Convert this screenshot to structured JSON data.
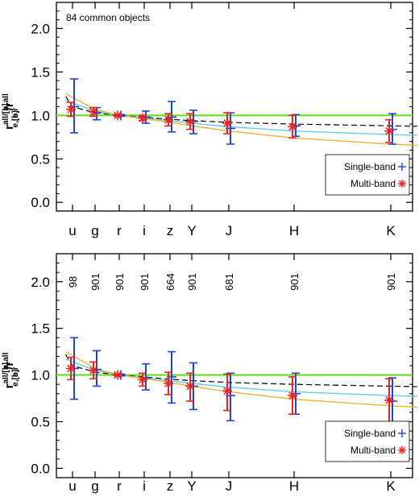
{
  "chart_data": [
    {
      "type": "scatter",
      "annotation": "84 common objects",
      "ylabel": {
        "main": "r",
        "sup": "all/[b]",
        "sub": "e,[b]",
        "div": "/r",
        "sup2": "all",
        "sub2": "e,r"
      },
      "ylim": [
        -0.1,
        2.3
      ],
      "yticks": [
        "0.0",
        "0.5",
        "1.0",
        "1.5",
        "2.0"
      ],
      "ytick_values": [
        0.0,
        0.5,
        1.0,
        1.5,
        2.0
      ],
      "bands": [
        "u",
        "g",
        "r",
        "i",
        "z",
        "Y",
        "J",
        "H",
        "K"
      ],
      "band_wavelength_um": [
        0.355,
        0.47,
        0.62,
        0.75,
        0.89,
        1.03,
        1.25,
        1.65,
        2.2
      ],
      "counts": [],
      "reference_line": 1.0,
      "series": [
        {
          "name": "Single-band",
          "marker": "+",
          "color": "#2244cc",
          "values": [
            1.1,
            1.03,
            1.0,
            0.98,
            0.98,
            0.93,
            0.85,
            0.88,
            0.84
          ],
          "err_low": [
            0.3,
            0.08,
            0.01,
            0.07,
            0.17,
            0.14,
            0.18,
            0.12,
            0.17
          ],
          "err_high": [
            0.32,
            0.06,
            0.01,
            0.07,
            0.18,
            0.13,
            0.18,
            0.13,
            0.18
          ]
        },
        {
          "name": "Multi-band",
          "marker": "*",
          "color": "#ee2222",
          "values": [
            1.07,
            1.04,
            1.0,
            0.97,
            0.95,
            0.93,
            0.91,
            0.87,
            0.82
          ],
          "err_low": [
            0.08,
            0.05,
            0.01,
            0.03,
            0.07,
            0.09,
            0.12,
            0.13,
            0.13
          ],
          "err_high": [
            0.08,
            0.05,
            0.01,
            0.03,
            0.07,
            0.09,
            0.12,
            0.13,
            0.13
          ]
        }
      ],
      "curves": [
        {
          "color": "#000000",
          "dashed": true,
          "x": [
            0.32,
            0.355,
            0.47,
            0.62,
            0.75,
            0.89,
            1.03,
            1.25,
            1.65,
            2.2,
            2.35
          ],
          "y": [
            1.22,
            1.1,
            1.03,
            1.0,
            0.98,
            0.955,
            0.94,
            0.92,
            0.9,
            0.88,
            0.875
          ]
        },
        {
          "color": "#66ccee",
          "dashed": false,
          "x": [
            0.32,
            0.47,
            0.62,
            0.75,
            0.89,
            1.03,
            1.25,
            1.65,
            2.2,
            2.35
          ],
          "y": [
            1.17,
            1.05,
            1.0,
            0.97,
            0.94,
            0.91,
            0.87,
            0.82,
            0.78,
            0.77
          ]
        },
        {
          "color": "#f0b030",
          "dashed": false,
          "x": [
            0.32,
            0.47,
            0.62,
            0.75,
            0.89,
            1.03,
            1.25,
            1.65,
            2.2,
            2.35
          ],
          "y": [
            1.25,
            1.07,
            1.0,
            0.96,
            0.92,
            0.88,
            0.82,
            0.74,
            0.67,
            0.655
          ]
        }
      ],
      "legend": {
        "position": "bottom-right"
      }
    },
    {
      "type": "scatter",
      "annotation": "",
      "ylabel": {
        "main": "r",
        "sup": "all/[b]",
        "sub": "e,[b]",
        "div": "/r",
        "sup2": "all",
        "sub2": "e,r"
      },
      "ylim": [
        -0.1,
        2.3
      ],
      "yticks": [
        "0.0",
        "0.5",
        "1.0",
        "1.5",
        "2.0"
      ],
      "ytick_values": [
        0.0,
        0.5,
        1.0,
        1.5,
        2.0
      ],
      "bands": [
        "u",
        "g",
        "r",
        "i",
        "z",
        "Y",
        "J",
        "H",
        "K"
      ],
      "band_wavelength_um": [
        0.355,
        0.47,
        0.62,
        0.75,
        0.89,
        1.03,
        1.25,
        1.65,
        2.2
      ],
      "counts": [
        "98",
        "901",
        "901",
        "901",
        "664",
        "901",
        "681",
        "901",
        "901"
      ],
      "reference_line": 1.0,
      "series": [
        {
          "name": "Single-band",
          "marker": "+",
          "color": "#2244cc",
          "values": [
            1.07,
            1.06,
            1.0,
            0.97,
            0.98,
            0.88,
            0.78,
            0.8,
            0.72
          ],
          "err_low": [
            0.33,
            0.18,
            0.01,
            0.13,
            0.28,
            0.25,
            0.27,
            0.22,
            0.25
          ],
          "err_high": [
            0.33,
            0.2,
            0.01,
            0.15,
            0.27,
            0.25,
            0.24,
            0.22,
            0.25
          ]
        },
        {
          "name": "Multi-band",
          "marker": "*",
          "color": "#ee2222",
          "values": [
            1.07,
            1.05,
            1.0,
            0.95,
            0.91,
            0.88,
            0.83,
            0.78,
            0.73
          ],
          "err_low": [
            0.12,
            0.09,
            0.01,
            0.07,
            0.12,
            0.16,
            0.21,
            0.2,
            0.23
          ],
          "err_high": [
            0.12,
            0.09,
            0.01,
            0.07,
            0.12,
            0.14,
            0.18,
            0.2,
            0.23
          ]
        }
      ],
      "curves": [
        {
          "color": "#000000",
          "dashed": true,
          "x": [
            0.32,
            0.355,
            0.47,
            0.62,
            0.75,
            0.89,
            1.03,
            1.25,
            1.65,
            2.2,
            2.35
          ],
          "y": [
            1.22,
            1.1,
            1.03,
            1.0,
            0.98,
            0.955,
            0.94,
            0.92,
            0.9,
            0.88,
            0.875
          ]
        },
        {
          "color": "#66ccee",
          "dashed": false,
          "x": [
            0.32,
            0.47,
            0.62,
            0.75,
            0.89,
            1.03,
            1.25,
            1.65,
            2.2,
            2.35
          ],
          "y": [
            1.17,
            1.05,
            1.0,
            0.97,
            0.94,
            0.91,
            0.87,
            0.82,
            0.78,
            0.77
          ]
        },
        {
          "color": "#f0b030",
          "dashed": false,
          "x": [
            0.32,
            0.47,
            0.62,
            0.75,
            0.89,
            1.03,
            1.25,
            1.65,
            2.2,
            2.35
          ],
          "y": [
            1.25,
            1.07,
            1.0,
            0.96,
            0.92,
            0.88,
            0.82,
            0.74,
            0.67,
            0.655
          ]
        }
      ],
      "legend": {
        "position": "bottom-right"
      }
    }
  ],
  "colors": {
    "reference_line": "#66dd22",
    "axis": "#000000"
  }
}
